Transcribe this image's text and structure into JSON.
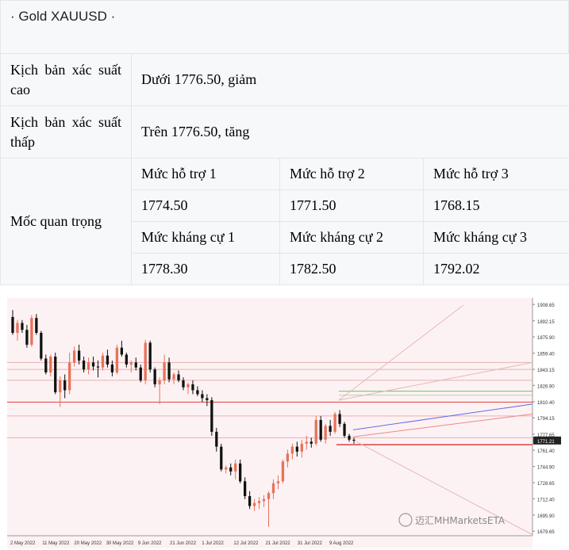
{
  "title": "· Gold XAUUSD ·",
  "rows": {
    "high_label": "Kịch bản xác suất cao",
    "high_value": "Dưới 1776.50, giảm",
    "low_label": "Kịch bản xác suất thấp",
    "low_value": "Trên 1776.50, tăng",
    "key_label": "Mốc quan trọng"
  },
  "levels": {
    "support_headers": [
      "Mức hỗ trợ 1",
      "Mức hỗ trợ 2",
      "Mức hỗ trợ 3"
    ],
    "support_values": [
      "1774.50",
      "1771.50",
      "1768.15"
    ],
    "resistance_headers": [
      "Mức kháng cự 1",
      "Mức kháng cự 2",
      "Mức kháng cự 3"
    ],
    "resistance_values": [
      "1778.30",
      "1782.50",
      "1792.02"
    ]
  },
  "chart_data": {
    "type": "candlestick",
    "y_ticks": [
      "1908.65",
      "1892.15",
      "1875.90",
      "1859.40",
      "1843.15",
      "1826.90",
      "1810.40",
      "1794.15",
      "1777.65",
      "1761.40",
      "1744.90",
      "1728.65",
      "1712.40",
      "1695.90",
      "1679.65"
    ],
    "ylim": [
      1675,
      1912
    ],
    "x_ticks": [
      "2 May 2022",
      "11 May 2022",
      "20 May 2022",
      "30 May 2022",
      "9 Jun 2022",
      "21 Jun 2022",
      "1 Jul 2022",
      "12 Jul 2022",
      "21 Jul 2022",
      "31 Jul 2022",
      "9 Aug 2022"
    ],
    "current_price_label": "1771.21",
    "current_price": 1771.21,
    "watermark": "迈汇MHMarketsETA",
    "colors": {
      "up": "#e8725a",
      "down": "#111111",
      "bg": "#fdf2f3",
      "red_line": "#e04040",
      "green_line": "#6cc26c",
      "blue_line": "#6a6ae6"
    },
    "candles": [
      [
        1896,
        1903,
        1878,
        1880
      ],
      [
        1880,
        1893,
        1872,
        1890
      ],
      [
        1890,
        1893,
        1880,
        1883
      ],
      [
        1883,
        1888,
        1865,
        1868
      ],
      [
        1868,
        1898,
        1866,
        1895
      ],
      [
        1895,
        1899,
        1878,
        1880
      ],
      [
        1880,
        1882,
        1852,
        1854
      ],
      [
        1854,
        1858,
        1838,
        1840
      ],
      [
        1840,
        1858,
        1836,
        1856
      ],
      [
        1856,
        1860,
        1818,
        1820
      ],
      [
        1820,
        1836,
        1805,
        1832
      ],
      [
        1832,
        1838,
        1814,
        1822
      ],
      [
        1822,
        1860,
        1818,
        1850
      ],
      [
        1850,
        1866,
        1846,
        1862
      ],
      [
        1862,
        1868,
        1848,
        1852
      ],
      [
        1852,
        1856,
        1840,
        1843
      ],
      [
        1843,
        1855,
        1838,
        1850
      ],
      [
        1850,
        1856,
        1842,
        1846
      ],
      [
        1846,
        1852,
        1835,
        1845
      ],
      [
        1845,
        1860,
        1842,
        1857
      ],
      [
        1857,
        1863,
        1845,
        1848
      ],
      [
        1848,
        1852,
        1836,
        1840
      ],
      [
        1840,
        1868,
        1838,
        1865
      ],
      [
        1865,
        1872,
        1856,
        1858
      ],
      [
        1858,
        1860,
        1845,
        1848
      ],
      [
        1848,
        1852,
        1840,
        1850
      ],
      [
        1850,
        1855,
        1842,
        1845
      ],
      [
        1845,
        1848,
        1830,
        1832
      ],
      [
        1832,
        1873,
        1828,
        1870
      ],
      [
        1870,
        1872,
        1840,
        1843
      ],
      [
        1843,
        1845,
        1825,
        1828
      ],
      [
        1828,
        1835,
        1808,
        1832
      ],
      [
        1832,
        1858,
        1828,
        1850
      ],
      [
        1850,
        1855,
        1830,
        1833
      ],
      [
        1833,
        1840,
        1828,
        1838
      ],
      [
        1838,
        1842,
        1830,
        1832
      ],
      [
        1832,
        1835,
        1822,
        1825
      ],
      [
        1825,
        1830,
        1818,
        1828
      ],
      [
        1828,
        1832,
        1818,
        1822
      ],
      [
        1822,
        1826,
        1816,
        1818
      ],
      [
        1818,
        1822,
        1810,
        1814
      ],
      [
        1814,
        1818,
        1806,
        1812
      ],
      [
        1812,
        1815,
        1776,
        1780
      ],
      [
        1780,
        1784,
        1760,
        1765
      ],
      [
        1765,
        1768,
        1740,
        1742
      ],
      [
        1742,
        1746,
        1738,
        1744
      ],
      [
        1744,
        1748,
        1736,
        1740
      ],
      [
        1740,
        1752,
        1732,
        1748
      ],
      [
        1748,
        1752,
        1728,
        1730
      ],
      [
        1730,
        1734,
        1712,
        1715
      ],
      [
        1715,
        1720,
        1702,
        1705
      ],
      [
        1705,
        1712,
        1700,
        1708
      ],
      [
        1708,
        1714,
        1702,
        1710
      ],
      [
        1710,
        1716,
        1704,
        1712
      ],
      [
        1712,
        1720,
        1684,
        1718
      ],
      [
        1718,
        1732,
        1712,
        1728
      ],
      [
        1728,
        1736,
        1722,
        1730
      ],
      [
        1730,
        1752,
        1728,
        1750
      ],
      [
        1750,
        1762,
        1744,
        1758
      ],
      [
        1758,
        1768,
        1752,
        1765
      ],
      [
        1765,
        1770,
        1755,
        1760
      ],
      [
        1760,
        1772,
        1754,
        1768
      ],
      [
        1768,
        1776,
        1762,
        1770
      ],
      [
        1770,
        1774,
        1764,
        1768
      ],
      [
        1768,
        1796,
        1766,
        1792
      ],
      [
        1792,
        1796,
        1770,
        1772
      ],
      [
        1772,
        1788,
        1768,
        1786
      ],
      [
        1786,
        1792,
        1776,
        1780
      ],
      [
        1780,
        1800,
        1778,
        1798
      ],
      [
        1798,
        1802,
        1785,
        1788
      ],
      [
        1788,
        1790,
        1774,
        1776
      ],
      [
        1776,
        1778,
        1770,
        1772
      ],
      [
        1772,
        1774,
        1768,
        1771
      ]
    ]
  }
}
